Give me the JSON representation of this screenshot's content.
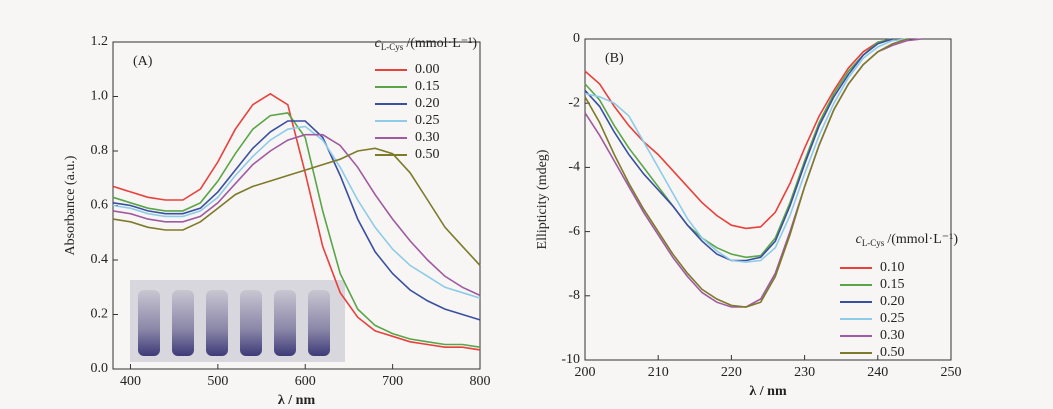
{
  "chart_data": [
    {
      "type": "line",
      "panel_label": "(A)",
      "x_label": "λ / nm",
      "y_label": "Absorbance (a.u.)",
      "legend_title": {
        "symbol": "c",
        "subscript": "L-Cys",
        "unit": "/(mmol·L⁻¹)"
      },
      "legend": "upper right",
      "x": [
        380,
        400,
        420,
        440,
        460,
        480,
        500,
        520,
        540,
        560,
        580,
        600,
        620,
        640,
        660,
        680,
        700,
        720,
        740,
        760,
        780,
        800
      ],
      "xlim": [
        380,
        800
      ],
      "xticks": [
        400,
        500,
        600,
        700,
        800
      ],
      "ylim": [
        0,
        1.2
      ],
      "yticks": [
        {
          "value": 0,
          "label": "0.0"
        },
        0.2,
        0.4,
        0.6,
        0.8,
        {
          "value": 1,
          "label": "1.0"
        },
        1.2
      ],
      "series": [
        {
          "name": "0.00",
          "color": "#e8413c",
          "values": [
            0.67,
            0.65,
            0.63,
            0.62,
            0.62,
            0.66,
            0.76,
            0.88,
            0.97,
            1.01,
            0.97,
            0.72,
            0.45,
            0.28,
            0.19,
            0.14,
            0.12,
            0.1,
            0.09,
            0.08,
            0.08,
            0.07
          ]
        },
        {
          "name": "0.15",
          "color": "#5aa548",
          "values": [
            0.63,
            0.61,
            0.59,
            0.58,
            0.58,
            0.61,
            0.69,
            0.79,
            0.88,
            0.93,
            0.94,
            0.85,
            0.58,
            0.35,
            0.22,
            0.16,
            0.13,
            0.11,
            0.1,
            0.09,
            0.09,
            0.08
          ]
        },
        {
          "name": "0.20",
          "color": "#3a4fa0",
          "values": [
            0.61,
            0.6,
            0.58,
            0.57,
            0.57,
            0.59,
            0.65,
            0.73,
            0.81,
            0.87,
            0.91,
            0.91,
            0.85,
            0.71,
            0.55,
            0.43,
            0.35,
            0.29,
            0.25,
            0.22,
            0.2,
            0.18
          ]
        },
        {
          "name": "0.25",
          "color": "#8ecbe8",
          "values": [
            0.6,
            0.59,
            0.57,
            0.56,
            0.56,
            0.58,
            0.63,
            0.71,
            0.78,
            0.84,
            0.88,
            0.89,
            0.84,
            0.74,
            0.62,
            0.52,
            0.44,
            0.38,
            0.34,
            0.3,
            0.28,
            0.26
          ]
        },
        {
          "name": "0.30",
          "color": "#a05aa0",
          "values": [
            0.58,
            0.57,
            0.55,
            0.54,
            0.54,
            0.56,
            0.61,
            0.68,
            0.75,
            0.8,
            0.84,
            0.86,
            0.86,
            0.82,
            0.74,
            0.64,
            0.55,
            0.47,
            0.4,
            0.34,
            0.3,
            0.27
          ]
        },
        {
          "name": "0.50",
          "color": "#7d7a2a",
          "values": [
            0.55,
            0.54,
            0.52,
            0.51,
            0.51,
            0.54,
            0.59,
            0.64,
            0.67,
            0.69,
            0.71,
            0.73,
            0.75,
            0.77,
            0.8,
            0.81,
            0.79,
            0.72,
            0.62,
            0.52,
            0.45,
            0.38
          ]
        }
      ]
    },
    {
      "type": "line",
      "panel_label": "(B)",
      "x_label": "λ / nm",
      "y_label": "Ellipticity (mdeg)",
      "legend_title": {
        "symbol": "c",
        "subscript": "L-Cys",
        "unit": "/(mmol·L⁻¹)"
      },
      "legend": "center right",
      "x": [
        200,
        202,
        204,
        206,
        208,
        210,
        212,
        214,
        216,
        218,
        220,
        222,
        224,
        226,
        228,
        230,
        232,
        234,
        236,
        238,
        240,
        242,
        244,
        246
      ],
      "xlim": [
        200,
        250
      ],
      "xticks": [
        200,
        210,
        220,
        230,
        240,
        250
      ],
      "ylim": [
        -10,
        0
      ],
      "yticks": [
        -10,
        -8,
        -6,
        -4,
        -2,
        0
      ],
      "series": [
        {
          "name": "0.10",
          "color": "#e8413c",
          "values": [
            -1.0,
            -1.4,
            -2.1,
            -2.7,
            -3.2,
            -3.6,
            -4.1,
            -4.6,
            -5.1,
            -5.5,
            -5.8,
            -5.9,
            -5.85,
            -5.4,
            -4.5,
            -3.4,
            -2.4,
            -1.6,
            -0.9,
            -0.4,
            -0.1,
            0,
            null,
            null
          ]
        },
        {
          "name": "0.15",
          "color": "#5aa548",
          "values": [
            -1.4,
            -1.9,
            -2.7,
            -3.4,
            -4.0,
            -4.6,
            -5.2,
            -5.8,
            -6.2,
            -6.5,
            -6.7,
            -6.8,
            -6.75,
            -6.2,
            -5.1,
            -3.8,
            -2.6,
            -1.7,
            -1.0,
            -0.5,
            -0.1,
            0,
            null,
            null
          ]
        },
        {
          "name": "0.20",
          "color": "#3a4fa0",
          "values": [
            -1.6,
            -2.1,
            -2.9,
            -3.6,
            -4.2,
            -4.7,
            -5.2,
            -5.8,
            -6.3,
            -6.7,
            -6.9,
            -6.9,
            -6.8,
            -6.3,
            -5.2,
            -3.9,
            -2.7,
            -1.8,
            -1.1,
            -0.5,
            -0.15,
            0,
            null,
            null
          ]
        },
        {
          "name": "0.25",
          "color": "#8ecbe8",
          "values": [
            -1.7,
            -1.8,
            -2.0,
            -2.4,
            -3.2,
            -4.0,
            -4.8,
            -5.6,
            -6.2,
            -6.6,
            -6.9,
            -6.95,
            -6.9,
            -6.5,
            -5.5,
            -4.2,
            -3.0,
            -2.0,
            -1.2,
            -0.6,
            -0.25,
            -0.05,
            0,
            null
          ]
        },
        {
          "name": "0.30",
          "color": "#a05aa0",
          "values": [
            -2.3,
            -3.0,
            -3.8,
            -4.6,
            -5.4,
            -6.1,
            -6.8,
            -7.4,
            -7.9,
            -8.2,
            -8.35,
            -8.35,
            -8.1,
            -7.3,
            -6.0,
            -4.6,
            -3.3,
            -2.2,
            -1.4,
            -0.8,
            -0.4,
            -0.2,
            -0.05,
            0
          ]
        },
        {
          "name": "0.50",
          "color": "#7d7a2a",
          "values": [
            -1.8,
            -2.6,
            -3.6,
            -4.5,
            -5.3,
            -6.0,
            -6.7,
            -7.3,
            -7.8,
            -8.1,
            -8.3,
            -8.35,
            -8.2,
            -7.4,
            -6.1,
            -4.6,
            -3.3,
            -2.2,
            -1.4,
            -0.8,
            -0.4,
            -0.15,
            0,
            null
          ]
        }
      ]
    }
  ]
}
